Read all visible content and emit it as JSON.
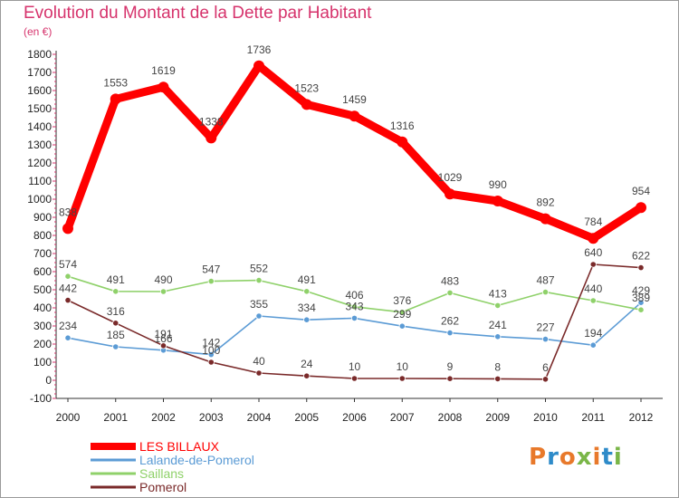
{
  "title": "Evolution du Montant de la Dette par Habitant",
  "subtitle": "(en €)",
  "logo": {
    "text": "Proxiti",
    "colors": [
      "#e8792b",
      "#2e8bc9",
      "#e8792b",
      "#7ab648",
      "#e8792b",
      "#2e8bc9",
      "#7ab648"
    ]
  },
  "chart_data": {
    "type": "line",
    "x": [
      "2000",
      "2001",
      "2002",
      "2003",
      "2004",
      "2005",
      "2006",
      "2007",
      "2008",
      "2009",
      "2010",
      "2011",
      "2012"
    ],
    "ylim": [
      -100,
      1800
    ],
    "yticks": [
      -100,
      0,
      100,
      200,
      300,
      400,
      500,
      600,
      700,
      800,
      900,
      1000,
      1100,
      1200,
      1300,
      1400,
      1500,
      1600,
      1700,
      1800
    ],
    "grid": false,
    "legend_position": "bottom-left",
    "series": [
      {
        "name": "LES BILLAUX",
        "color": "#ff0000",
        "values": [
          838,
          1553,
          1619,
          1338,
          1736,
          1523,
          1459,
          1316,
          1029,
          990,
          892,
          784,
          954
        ]
      },
      {
        "name": "Lalande-de-Pomerol",
        "color": "#5b9bd5",
        "values": [
          234,
          185,
          166,
          142,
          355,
          334,
          343,
          299,
          262,
          241,
          227,
          194,
          429
        ]
      },
      {
        "name": "Saillans",
        "color": "#8fd16a",
        "values": [
          574,
          491,
          490,
          547,
          552,
          491,
          406,
          376,
          483,
          413,
          487,
          440,
          389
        ]
      },
      {
        "name": "Pomerol",
        "color": "#7a2a2a",
        "values": [
          442,
          316,
          191,
          100,
          40,
          24,
          10,
          10,
          9,
          8,
          6,
          640,
          622
        ]
      }
    ],
    "labels_text": {
      "LES BILLAUX": [
        "838",
        "1553",
        "1619",
        "1338",
        "1736",
        "1523",
        "1459",
        "1316",
        "1029",
        "990",
        "892",
        "784",
        "954"
      ],
      "Lalande-de-Pomerol": [
        "234",
        "185",
        "166",
        "142",
        "355",
        "334",
        "343",
        "299",
        "262",
        "241",
        "227",
        "194",
        "429"
      ],
      "Saillans": [
        "574",
        "491",
        "490",
        "547",
        "552",
        "491",
        "406",
        "376",
        "483",
        "413",
        "487",
        "440",
        "389"
      ],
      "Pomerol": [
        "442",
        "316",
        "191",
        "100",
        "40",
        "24",
        "10",
        "10",
        "9",
        "8",
        "6",
        "640",
        "622"
      ]
    }
  }
}
